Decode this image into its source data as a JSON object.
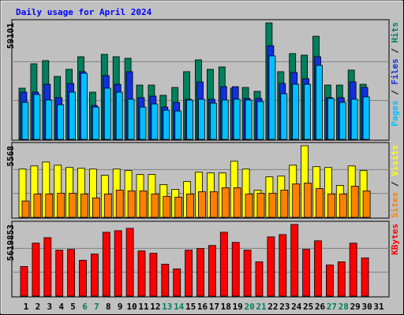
{
  "title": "Daily usage for April 2024",
  "chart_data": [
    {
      "type": "bar",
      "ylim": [
        0,
        59101
      ],
      "yticks": [
        59101
      ],
      "series": [
        {
          "name": "Pages",
          "color": "#00c0ff",
          "values": [
            18768,
            22761,
            19966,
            17570,
            23959,
            33543,
            16372,
            25956,
            23959,
            20365,
            16372,
            17969,
            14775,
            14375,
            19966,
            20365,
            18369,
            19966,
            20365,
            19966,
            19167,
            42328,
            23160,
            27952,
            27952,
            37536,
            20765,
            18768,
            20365,
            21563,
            null
          ]
        },
        {
          "name": "Files",
          "color": "#1030e0",
          "values": [
            23959,
            23959,
            27952,
            21164,
            28352,
            34342,
            17171,
            32345,
            27952,
            34342,
            21164,
            21962,
            16372,
            18768,
            20365,
            29150,
            20365,
            26754,
            26754,
            20765,
            20765,
            47519,
            28352,
            33942,
            30748,
            41929,
            21164,
            21164,
            29150,
            26355,
            null
          ]
        },
        {
          "name": "Hits",
          "color": "#00805c",
          "values": [
            25956,
            38333,
            39932,
            31946,
            35540,
            41929,
            23959,
            43127,
            41929,
            41130,
            27553,
            27553,
            22362,
            26355,
            34342,
            40332,
            35540,
            36738,
            25956,
            26355,
            24359,
            59101,
            34342,
            43526,
            42728,
            52311,
            27553,
            27553,
            35141,
            27952,
            null
          ]
        }
      ]
    },
    {
      "type": "bar",
      "ylim": [
        0,
        5568
      ],
      "yticks": [
        5568
      ],
      "series": [
        {
          "name": "Sites",
          "color": "#ff8000",
          "values": [
            1271,
            1816,
            1816,
            1876,
            1876,
            1816,
            1513,
            1816,
            2118,
            2058,
            2058,
            1816,
            1634,
            1574,
            1816,
            1997,
            1997,
            2300,
            2300,
            1816,
            1876,
            1876,
            2118,
            2602,
            2663,
            2239,
            1816,
            1816,
            2421,
            2058,
            null
          ]
        },
        {
          "name": "Visits",
          "color": "#ffff00",
          "values": [
            3752,
            3994,
            4297,
            4055,
            3873,
            3813,
            3752,
            3268,
            3752,
            3631,
            3329,
            3329,
            2542,
            2179,
            2784,
            3510,
            3450,
            3450,
            4357,
            3752,
            2118,
            3147,
            3208,
            4055,
            5568,
            3934,
            3873,
            2481,
            3994,
            3631,
            null
          ]
        }
      ]
    },
    {
      "type": "bar",
      "ylim": [
        0,
        5619853
      ],
      "yticks": [
        5619853
      ],
      "categories": [
        "1",
        "2",
        "3",
        "4",
        "5",
        "6",
        "7",
        "8",
        "9",
        "10",
        "11",
        "12",
        "13",
        "14",
        "15",
        "16",
        "17",
        "18",
        "19",
        "20",
        "21",
        "22",
        "23",
        "24",
        "25",
        "26",
        "27",
        "28",
        "29",
        "30",
        "31"
      ],
      "category_colors": [
        "#000000",
        "#000000",
        "#000000",
        "#000000",
        "#000000",
        "#00805c",
        "#00805c",
        "#000000",
        "#000000",
        "#000000",
        "#000000",
        "#000000",
        "#00805c",
        "#00805c",
        "#000000",
        "#000000",
        "#000000",
        "#000000",
        "#000000",
        "#00805c",
        "#00805c",
        "#000000",
        "#000000",
        "#000000",
        "#000000",
        "#000000",
        "#00805c",
        "#00805c",
        "#000000",
        "#000000",
        "#000000"
      ],
      "series": [
        {
          "name": "KBytes",
          "color": "#ff0000",
          "values": [
            2321230,
            4153780,
            4581375,
            3604015,
            3665100,
            2809910,
            3298590,
            5008970,
            5131140,
            5314395,
            3542930,
            3359675,
            2504485,
            2137975,
            3604015,
            3726185,
            3970525,
            5008970,
            4214865,
            3604015,
            2687740,
            4642460,
            4825715,
            5619853,
            3665100,
            4337035,
            2443400,
            2687740,
            4153780,
            2993165,
            null
          ]
        }
      ]
    }
  ]
}
